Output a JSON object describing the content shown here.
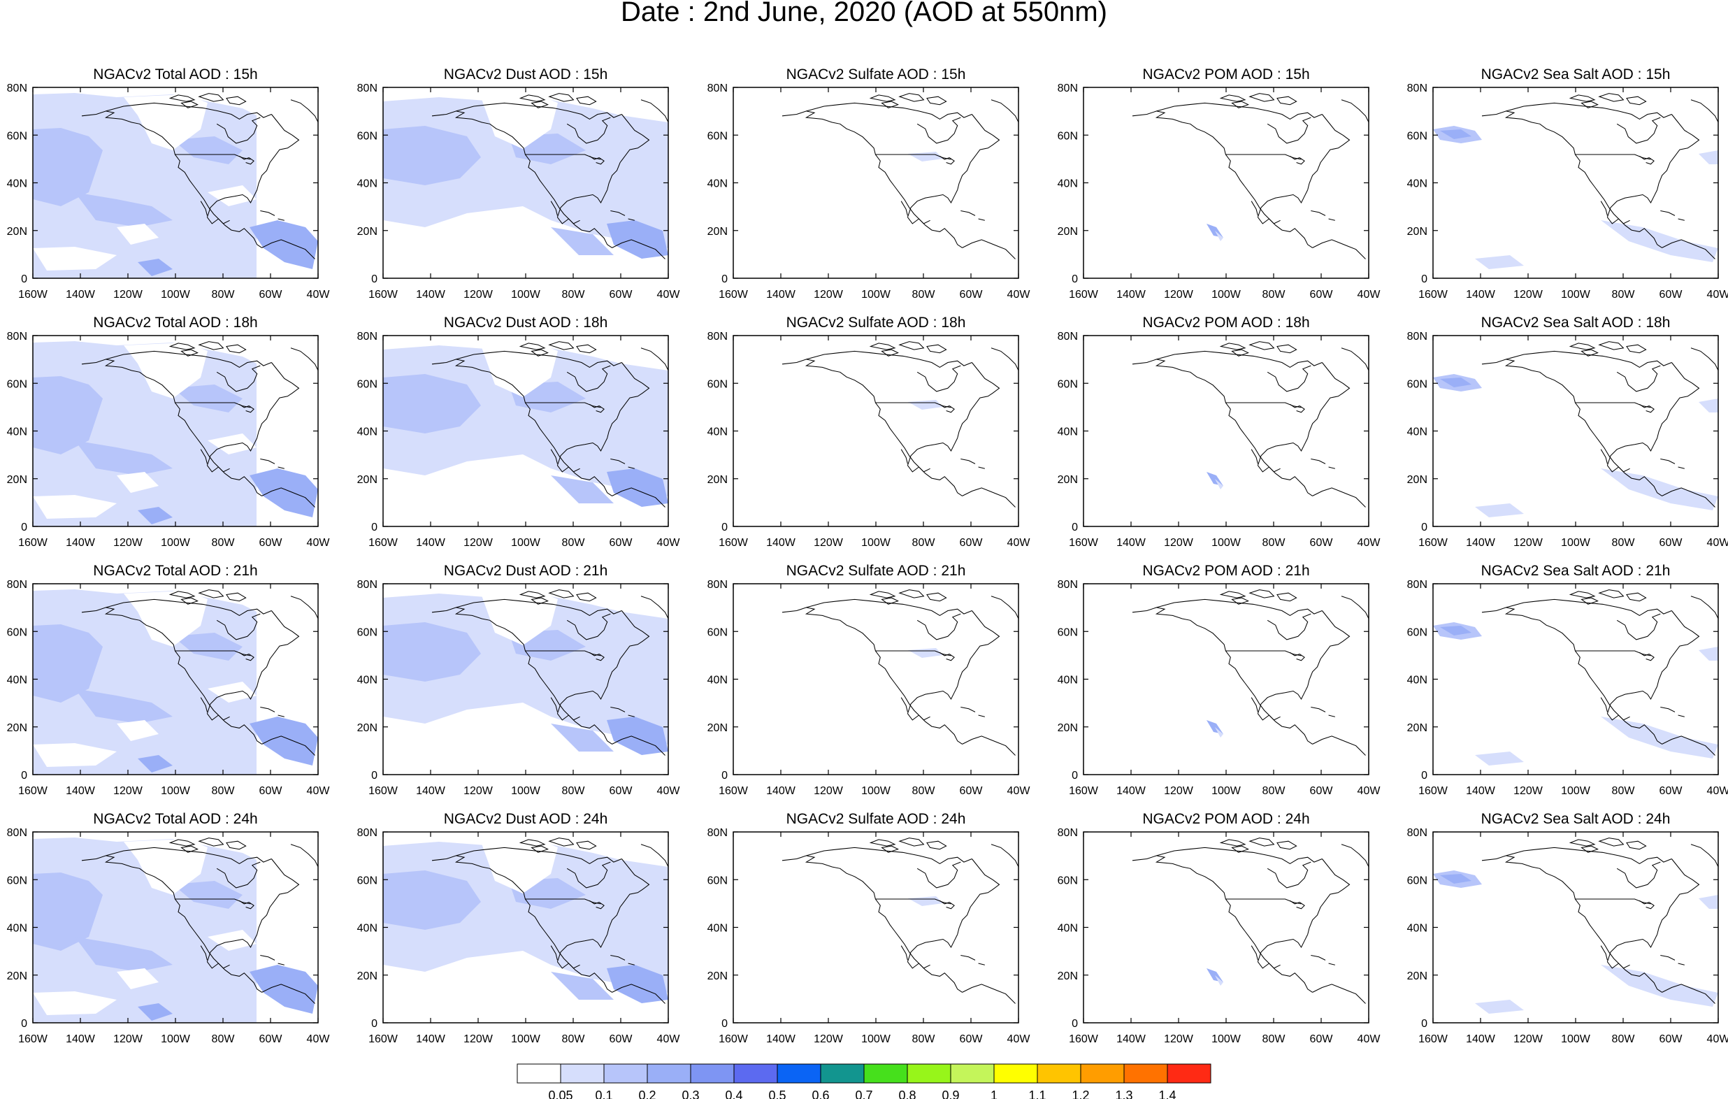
{
  "title": "Date : 2nd June, 2020 (AOD at 550nm)",
  "row_hours": [
    "15h",
    "18h",
    "21h",
    "24h"
  ],
  "panel_titles": [
    [
      "NGACv2 Total AOD : 15h",
      "NGACv2 Dust AOD : 15h",
      "NGACv2 Sulfate AOD : 15h",
      "NGACv2 POM AOD : 15h",
      "NGACv2 Sea Salt AOD : 15h"
    ],
    [
      "NGACv2 Total AOD : 18h",
      "NGACv2 Dust AOD : 18h",
      "NGACv2 Sulfate AOD : 18h",
      "NGACv2 POM AOD : 18h",
      "NGACv2 Sea Salt AOD : 18h"
    ],
    [
      "NGACv2 Total AOD : 21h",
      "NGACv2 Dust AOD : 21h",
      "NGACv2 Sulfate AOD : 21h",
      "NGACv2 POM AOD : 21h",
      "NGACv2 Sea Salt AOD : 21h"
    ],
    [
      "NGACv2 Total AOD : 24h",
      "NGACv2 Dust AOD : 24h",
      "NGACv2 Sulfate AOD : 24h",
      "NGACv2 POM AOD : 24h",
      "NGACv2 Sea Salt  AOD : 24h"
    ]
  ],
  "lon_ticks": [
    "160W",
    "140W",
    "120W",
    "100W",
    "80W",
    "60W",
    "40W"
  ],
  "lat_ticks": [
    "0",
    "20N",
    "40N",
    "60N",
    "80N"
  ],
  "lon_range": [
    -160,
    -40
  ],
  "lat_range": [
    0,
    80
  ],
  "colorbar": {
    "labels": [
      "0.05",
      "0.1",
      "0.2",
      "0.3",
      "0.4",
      "0.5",
      "0.6",
      "0.7",
      "0.8",
      "0.9",
      "1",
      "1.1",
      "1.2",
      "1.3",
      "1.4"
    ],
    "colors": [
      "#ffffff",
      "#d6defc",
      "#b7c5fa",
      "#9aaff7",
      "#7e95f3",
      "#5c6af0",
      "#0a64f5",
      "#12958f",
      "#46e01c",
      "#97f51a",
      "#c4f55a",
      "#ffff00",
      "#ffc400",
      "#ff9d00",
      "#ff7200",
      "#ff2a14"
    ]
  }
}
